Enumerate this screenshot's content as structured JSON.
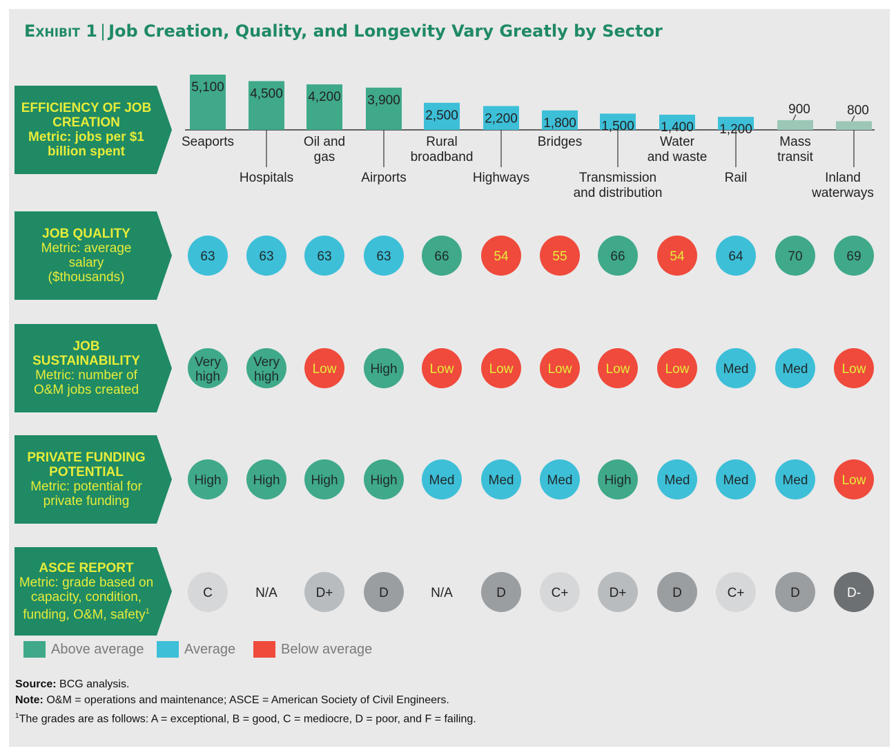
{
  "title": {
    "exhibit": "Exhibit 1",
    "separator": "|",
    "text": "Job Creation, Quality, and Longevity Vary Greatly by Sector"
  },
  "metrics": [
    {
      "title": "EFFICIENCY OF JOB CREATION",
      "sub": "Metric: jobs per $1 billion spent"
    },
    {
      "title": "JOB QUALITY",
      "sub": "Metric: average salary ($thousands)"
    },
    {
      "title": "JOB SUSTAINABILITY",
      "sub": "Metric: number of O&M jobs created"
    },
    {
      "title": "PRIVATE FUNDING POTENTIAL",
      "sub": "Metric: potential for private funding"
    },
    {
      "title": "ASCE REPORT",
      "sub": "Metric: grade based on capacity, condition, funding, O&M, safety",
      "sup": "1"
    }
  ],
  "chart_data": {
    "type": "bar",
    "categories": [
      "Seaports",
      "Hospitals",
      "Oil and gas",
      "Airports",
      "Rural broadband",
      "Highways",
      "Bridges",
      "Transmission and distribution",
      "Water and waste",
      "Rail",
      "Mass transit",
      "Inland waterways"
    ],
    "category_label_lines": [
      [
        "Seaports"
      ],
      [
        "Hospitals"
      ],
      [
        "Oil and",
        "gas"
      ],
      [
        "Airports"
      ],
      [
        "Rural",
        "broadband"
      ],
      [
        "Highways"
      ],
      [
        "Bridges"
      ],
      [
        "Transmission",
        "and distribution"
      ],
      [
        "Water",
        "and waste"
      ],
      [
        "Rail"
      ],
      [
        "Mass",
        "transit"
      ],
      [
        "Inland",
        "waterways"
      ]
    ],
    "values": [
      5100,
      4500,
      4200,
      3900,
      2500,
      2200,
      1800,
      1500,
      1400,
      1200,
      900,
      800
    ],
    "value_labels": [
      "5,100",
      "4,500",
      "4,200",
      "3,900",
      "2,500",
      "2,200",
      "1,800",
      "1,500",
      "1,400",
      "1,200",
      "900",
      "800"
    ],
    "ratings": [
      "above",
      "above",
      "above",
      "above",
      "average",
      "average",
      "average",
      "average",
      "average",
      "average",
      "light",
      "light"
    ]
  },
  "rows": {
    "job_quality": {
      "values": [
        "63",
        "63",
        "63",
        "63",
        "66",
        "54",
        "55",
        "66",
        "54",
        "64",
        "70",
        "69"
      ],
      "ratings": [
        "average",
        "average",
        "average",
        "average",
        "above",
        "below",
        "below",
        "above",
        "below",
        "average",
        "above",
        "above"
      ]
    },
    "job_sustainability": {
      "values": [
        [
          "Very",
          "high"
        ],
        [
          "Very",
          "high"
        ],
        [
          "Low"
        ],
        [
          "High"
        ],
        [
          "Low"
        ],
        [
          "Low"
        ],
        [
          "Low"
        ],
        [
          "Low"
        ],
        [
          "Low"
        ],
        [
          "Med"
        ],
        [
          "Med"
        ],
        [
          "Low"
        ]
      ],
      "ratings": [
        "above",
        "above",
        "below",
        "above",
        "below",
        "below",
        "below",
        "below",
        "below",
        "average",
        "average",
        "below"
      ]
    },
    "private_funding": {
      "values": [
        "High",
        "High",
        "High",
        "High",
        "Med",
        "Med",
        "Med",
        "High",
        "Med",
        "Med",
        "Med",
        "Low"
      ],
      "ratings": [
        "above",
        "above",
        "above",
        "above",
        "average",
        "average",
        "average",
        "above",
        "average",
        "average",
        "average",
        "below"
      ]
    },
    "asce_grades": {
      "values": [
        "C",
        "N/A",
        "D+",
        "D",
        "N/A",
        "D",
        "C+",
        "D+",
        "D",
        "C+",
        "D",
        "D-"
      ],
      "shades": [
        "#d5d7d9",
        null,
        "#b9bcbf",
        "#9b9ea1",
        null,
        "#9b9ea1",
        "#d5d7d9",
        "#b9bcbf",
        "#9b9ea1",
        "#d5d7d9",
        "#9b9ea1",
        "#6c7073"
      ]
    }
  },
  "colors": {
    "above": "#3fa98a",
    "average": "#3dbfd8",
    "below": "#ef4a3c",
    "light": "#9cc7b7",
    "dark_green": "#1f8a64",
    "yellow": "#e7ec3a"
  },
  "legend": [
    {
      "label": "Above average",
      "color": "#3fa98a"
    },
    {
      "label": "Average",
      "color": "#3dbfd8"
    },
    {
      "label": "Below average",
      "color": "#ef4a3c"
    }
  ],
  "notes": {
    "source_label": "Source:",
    "source_text": "BCG analysis.",
    "note_label": "Note:",
    "note_text": "O&M = operations and maintenance; ASCE = American Society of Civil Engineers.",
    "footnote_mark": "1",
    "footnote_text": "The grades are as follows: A = exceptional, B = good, C = mediocre, D = poor, and F = failing."
  }
}
